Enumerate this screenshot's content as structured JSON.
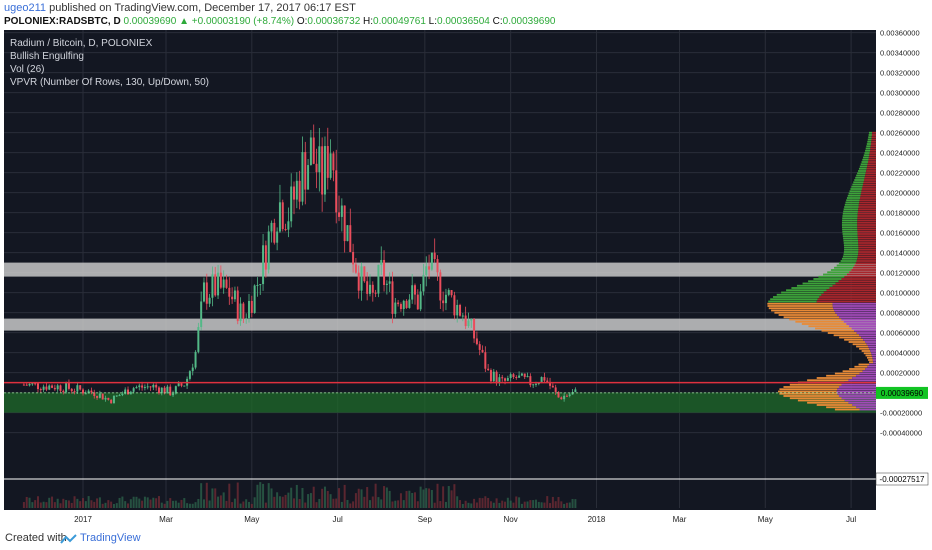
{
  "header": {
    "user": "ugeo211",
    "published": "published on TradingView.com, December 17, 2017 06:17 EST",
    "symbol": "POLONIEX:RADSBTC, D",
    "last": "0.00039690",
    "change_arrow": "▲",
    "change": "+0.00003190 (+8.74%)",
    "o_label": "O:",
    "o_value": "0.00036732",
    "h_label": "H:",
    "h_value": "0.00049761",
    "l_label": "L:",
    "l_value": "0.00036504",
    "c_label": "C:",
    "c_value": "0.00039690"
  },
  "legend": [
    "Radium / Bitcoin, D, POLONIEX",
    "Bullish Engulfing",
    "Vol (26)",
    "VPVR (Number Of Rows, 130, Up/Down, 50)"
  ],
  "price_badge": "0.00039690",
  "vol_badge": "-0.00027517",
  "footer": {
    "created": "Created with",
    "brand": "TradingView"
  },
  "colors": {
    "background": "#131722",
    "up": "#53b987",
    "down": "#eb4d5c",
    "zone_band": "#c8c8c8",
    "support_zone": "#1f6b2a",
    "resistance_line": "#e0313f",
    "vp_up": "#e88a36",
    "vp_down": "#a24bb8",
    "vp_green": "#3ea33a",
    "vp_red": "#a8262c"
  },
  "chart_data": {
    "type": "candlestick",
    "title": "Radium / Bitcoin, D, POLONIEX",
    "x_ticks": [
      "2017",
      "Mar",
      "May",
      "Jul",
      "Sep",
      "Nov",
      "2018",
      "Mar",
      "May",
      "Jul"
    ],
    "y_ticks": [
      "0.00360000",
      "0.00340000",
      "0.00320000",
      "0.00300000",
      "0.00280000",
      "0.00260000",
      "0.00240000",
      "0.00220000",
      "0.00200000",
      "0.00180000",
      "0.00160000",
      "0.00140000",
      "0.00120000",
      "0.00100000",
      "0.00080000",
      "0.00060000",
      "0.00040000",
      "0.00020000",
      "-0.00000000",
      "-0.00020000",
      "-0.00040000"
    ],
    "ylim": [
      -0.0005,
      0.0036
    ],
    "y_scale": "linear",
    "grid": true,
    "price_path": [
      [
        "2016-11-20",
        0.00048
      ],
      [
        "2016-12-15",
        0.00046
      ],
      [
        "2017-01-10",
        0.0004
      ],
      [
        "2017-01-20",
        0.00032
      ],
      [
        "2017-02-05",
        0.00045
      ],
      [
        "2017-02-20",
        0.00046
      ],
      [
        "2017-03-05",
        0.0004
      ],
      [
        "2017-03-15",
        0.0005
      ],
      [
        "2017-03-22",
        0.0008
      ],
      [
        "2017-03-28",
        0.0014
      ],
      [
        "2017-04-05",
        0.00145
      ],
      [
        "2017-04-15",
        0.0014
      ],
      [
        "2017-04-25",
        0.00115
      ],
      [
        "2017-05-05",
        0.0015
      ],
      [
        "2017-05-12",
        0.0019
      ],
      [
        "2017-05-20",
        0.0023
      ],
      [
        "2017-05-28",
        0.0022
      ],
      [
        "2017-06-05",
        0.0026
      ],
      [
        "2017-06-12",
        0.0028
      ],
      [
        "2017-06-20",
        0.0025
      ],
      [
        "2017-06-26",
        0.0029
      ],
      [
        "2017-07-02",
        0.0023
      ],
      [
        "2017-07-10",
        0.0019
      ],
      [
        "2017-07-18",
        0.0015
      ],
      [
        "2017-07-25",
        0.0013
      ],
      [
        "2017-08-01",
        0.0016
      ],
      [
        "2017-08-10",
        0.0013
      ],
      [
        "2017-08-20",
        0.0014
      ],
      [
        "2017-08-28",
        0.0013
      ],
      [
        "2017-09-03",
        0.0017
      ],
      [
        "2017-09-10",
        0.0015
      ],
      [
        "2017-09-18",
        0.00135
      ],
      [
        "2017-09-28",
        0.0012
      ],
      [
        "2017-10-08",
        0.0009
      ],
      [
        "2017-10-16",
        0.0006
      ],
      [
        "2017-10-26",
        0.0005
      ],
      [
        "2017-11-05",
        0.00055
      ],
      [
        "2017-11-15",
        0.0005
      ],
      [
        "2017-11-25",
        0.00055
      ],
      [
        "2017-12-05",
        0.00035
      ],
      [
        "2017-12-17",
        0.0004
      ]
    ],
    "horizontal_zones": [
      {
        "from": 0.00156,
        "to": 0.0017
      },
      {
        "from": 0.00102,
        "to": 0.00114
      }
    ],
    "support_zone": {
      "from": 0.0002,
      "to": 0.0004
    },
    "resistance_line": 0.0005,
    "current_price": 0.0003969
  }
}
